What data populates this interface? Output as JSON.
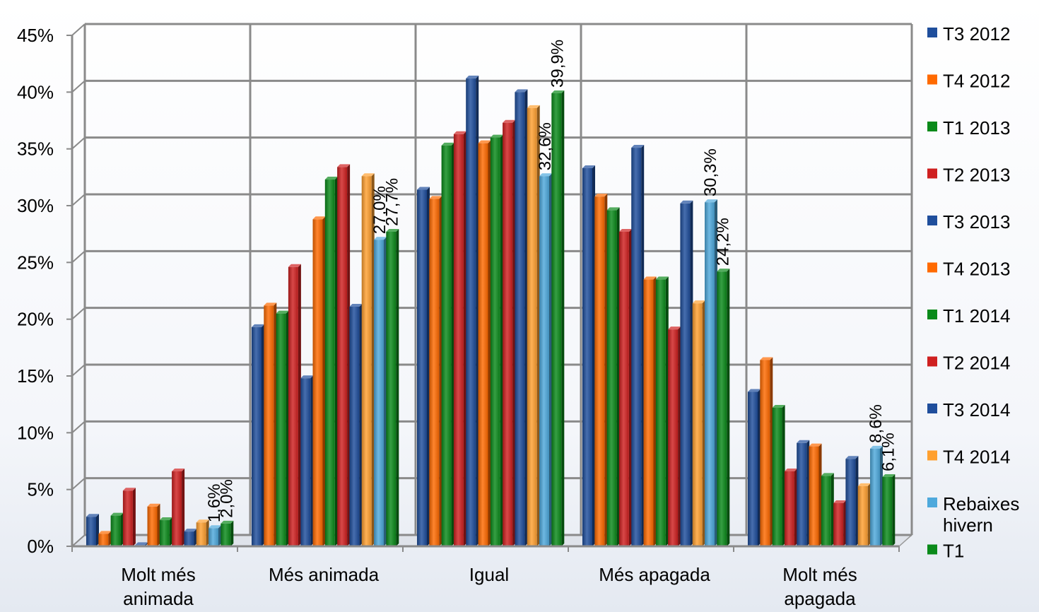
{
  "chart_data": {
    "type": "bar",
    "title": "",
    "xlabel": "",
    "ylabel": "",
    "ylim": [
      0,
      45
    ],
    "y_ticks": [
      "0%",
      "5%",
      "10%",
      "15%",
      "20%",
      "25%",
      "30%",
      "35%",
      "40%",
      "45%"
    ],
    "grid": true,
    "legend_position": "right",
    "categories": [
      [
        "Molt més",
        "animada"
      ],
      [
        "Més animada"
      ],
      [
        "Igual"
      ],
      [
        "Més apagada"
      ],
      [
        "Molt més",
        "apagada"
      ]
    ],
    "series": [
      {
        "name": "T3 2012",
        "color": "#1f4e9c",
        "values": [
          2.6,
          19.3,
          31.4,
          33.3,
          13.6
        ]
      },
      {
        "name": "T4 2012",
        "color": "#ff6a00",
        "values": [
          1.1,
          21.2,
          30.6,
          30.8,
          16.4
        ]
      },
      {
        "name": "T1 2013",
        "color": "#0a8a1a",
        "values": [
          2.7,
          20.5,
          35.3,
          29.6,
          12.2
        ]
      },
      {
        "name": "T2 2013",
        "color": "#cf2020",
        "values": [
          4.9,
          24.6,
          36.3,
          27.7,
          6.6
        ]
      },
      {
        "name": "T3 2013",
        "color": "#1f4e9c",
        "values": [
          0.1,
          14.8,
          41.2,
          35.1,
          9.1
        ]
      },
      {
        "name": "T4 2013",
        "color": "#ff6a00",
        "values": [
          3.5,
          28.8,
          35.5,
          23.5,
          8.8
        ]
      },
      {
        "name": "T1 2014",
        "color": "#0a8a1a",
        "values": [
          2.3,
          32.3,
          36.0,
          23.5,
          6.2
        ]
      },
      {
        "name": "T2 2014",
        "color": "#cf2020",
        "values": [
          6.6,
          33.4,
          37.3,
          19.1,
          3.8
        ]
      },
      {
        "name": "T3 2014",
        "color": "#1f4e9c",
        "values": [
          1.3,
          21.1,
          40.0,
          30.2,
          7.7
        ]
      },
      {
        "name": "T4 2014",
        "color": "#ffa030",
        "values": [
          2.1,
          32.6,
          38.6,
          21.4,
          5.3
        ]
      },
      {
        "name": "Rebaixes hivern",
        "color": "#4ea9dc",
        "values": [
          1.6,
          27.0,
          32.6,
          30.3,
          8.6
        ],
        "labels": [
          "1,6%",
          "27,0%",
          "32,6%",
          "30,3%",
          "8,6%"
        ]
      },
      {
        "name": "T1",
        "color": "#0a8a1a",
        "values": [
          2.0,
          27.7,
          39.9,
          24.2,
          6.1
        ],
        "labels": [
          "2,0%",
          "27,7%",
          "39,9%",
          "24,2%",
          "6,1%"
        ]
      }
    ],
    "legend": [
      {
        "lines": [
          "T3 2012"
        ],
        "color": "#1f4e9c"
      },
      {
        "lines": [
          "T4 2012"
        ],
        "color": "#ff6a00"
      },
      {
        "lines": [
          "T1 2013"
        ],
        "color": "#0a8a1a"
      },
      {
        "lines": [
          "T2 2013"
        ],
        "color": "#cf2020"
      },
      {
        "lines": [
          "T3 2013"
        ],
        "color": "#1f4e9c"
      },
      {
        "lines": [
          "T4 2013"
        ],
        "color": "#ff6a00"
      },
      {
        "lines": [
          "T1 2014"
        ],
        "color": "#0a8a1a"
      },
      {
        "lines": [
          "T2 2014"
        ],
        "color": "#cf2020"
      },
      {
        "lines": [
          "T3 2014"
        ],
        "color": "#1f4e9c"
      },
      {
        "lines": [
          "T4 2014"
        ],
        "color": "#ffa030"
      },
      {
        "lines": [
          "Rebaixes",
          "hivern"
        ],
        "color": "#4ea9dc"
      },
      {
        "lines": [
          "T1"
        ],
        "color": "#0a8a1a"
      }
    ]
  }
}
